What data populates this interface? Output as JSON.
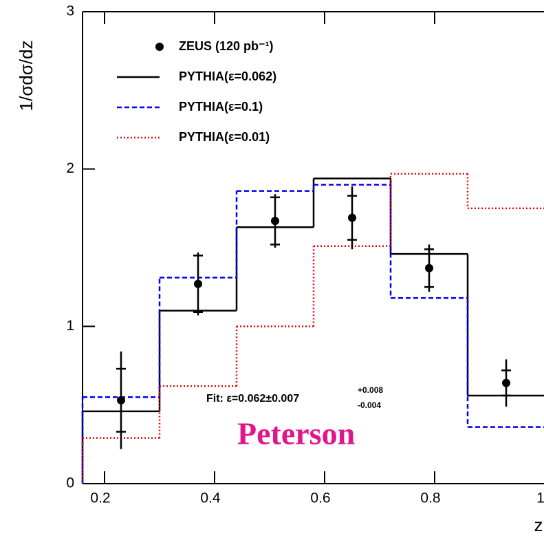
{
  "chart_data": {
    "type": "histogram",
    "y_label": "1/σdσ/dz",
    "x_label": "z",
    "bins": [
      0.16,
      0.3,
      0.44,
      0.58,
      0.72,
      0.86,
      1.0
    ],
    "xlim": [
      0.16,
      1.0
    ],
    "xticks": [
      0.2,
      0.4,
      0.6,
      0.8,
      1
    ],
    "ylim": [
      0,
      3
    ],
    "yticks": [
      0,
      1,
      2,
      3
    ],
    "points": {
      "name": "ZEUS (120 pb⁻¹)",
      "color": "#000000",
      "values": [
        0.53,
        1.27,
        1.67,
        1.69,
        1.37,
        0.64
      ],
      "stat_errors": [
        0.2,
        0.18,
        0.15,
        0.14,
        0.12,
        0.08
      ],
      "total_errors": [
        0.31,
        0.2,
        0.17,
        0.2,
        0.15,
        0.15
      ]
    },
    "series": [
      {
        "name": "PYTHIA(ε=0.062)",
        "color": "#000000",
        "line_style": "solid",
        "values": [
          0.46,
          1.1,
          1.63,
          1.94,
          1.46,
          0.56
        ]
      },
      {
        "name": "PYTHIA(ε=0.1)",
        "color": "#0000ee",
        "line_style": "dashed",
        "values": [
          0.55,
          1.31,
          1.86,
          1.9,
          1.18,
          0.36
        ]
      },
      {
        "name": "PYTHIA(ε=0.01)",
        "color": "#ee0000",
        "line_style": "dotted",
        "values": [
          0.29,
          0.62,
          1.0,
          1.51,
          1.97,
          1.75
        ]
      }
    ],
    "fit_text": "Fit: ε=0.062±0.007",
    "fit_err_up": "+0.008",
    "fit_err_down": "-0.004",
    "model_label": "Peterson",
    "model_color": "#e0168c"
  }
}
